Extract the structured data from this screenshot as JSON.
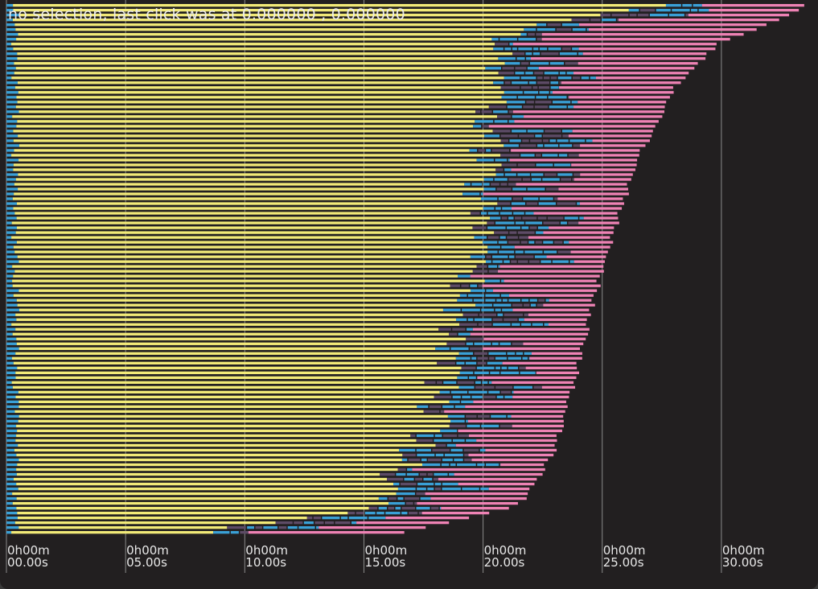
{
  "status": {
    "message": "no selection, last click was at 0.000000 , 0.000000"
  },
  "colors": {
    "background": "#221f20",
    "gridline": "#8a8a8a",
    "phase_a": "#f2ea78",
    "phase_b": "#3aa0d6",
    "phase_c": "#ee82b4",
    "phase_small": "#3aa0d6",
    "text": "#e8e8e8"
  },
  "chart_data": {
    "type": "bar",
    "orientation": "horizontal-stacked",
    "title": "",
    "xlabel": "",
    "ylabel": "",
    "xlim_seconds": [
      0,
      34
    ],
    "grid": true,
    "x_ticks": [
      {
        "line1": "0h00m",
        "line2": "00.00s",
        "value": 0
      },
      {
        "line1": "0h00m",
        "line2": "05.00s",
        "value": 5
      },
      {
        "line1": "0h00m",
        "line2": "10.00s",
        "value": 10
      },
      {
        "line1": "0h00m",
        "line2": "15.00s",
        "value": 15
      },
      {
        "line1": "0h00m",
        "line2": "20.00s",
        "value": 20
      },
      {
        "line1": "0h00m",
        "line2": "25.00s",
        "value": 25
      },
      {
        "line1": "0h00m",
        "line2": "30.00s",
        "value": 30
      }
    ],
    "row_count": 110,
    "segments_per_row": [
      "phase_small",
      "phase_a",
      "phase_b",
      "phase_c"
    ],
    "end_time_profile_seconds": [
      [
        0,
        33.6
      ],
      [
        0.03,
        32.3
      ],
      [
        0.07,
        30.0
      ],
      [
        0.15,
        28.1
      ],
      [
        0.3,
        26.4
      ],
      [
        0.5,
        25.0
      ],
      [
        0.7,
        23.9
      ],
      [
        0.85,
        23.0
      ],
      [
        0.95,
        21.5
      ],
      [
        1.0,
        16.8
      ]
    ],
    "phase_a_end_profile_seconds": [
      [
        0,
        27.0
      ],
      [
        0.05,
        21.0
      ],
      [
        0.2,
        20.3
      ],
      [
        0.5,
        19.5
      ],
      [
        0.8,
        17.8
      ],
      [
        0.95,
        15.5
      ],
      [
        1.0,
        8.5
      ]
    ],
    "phase_b_length_range_seconds": [
      0.5,
      4.0
    ]
  }
}
